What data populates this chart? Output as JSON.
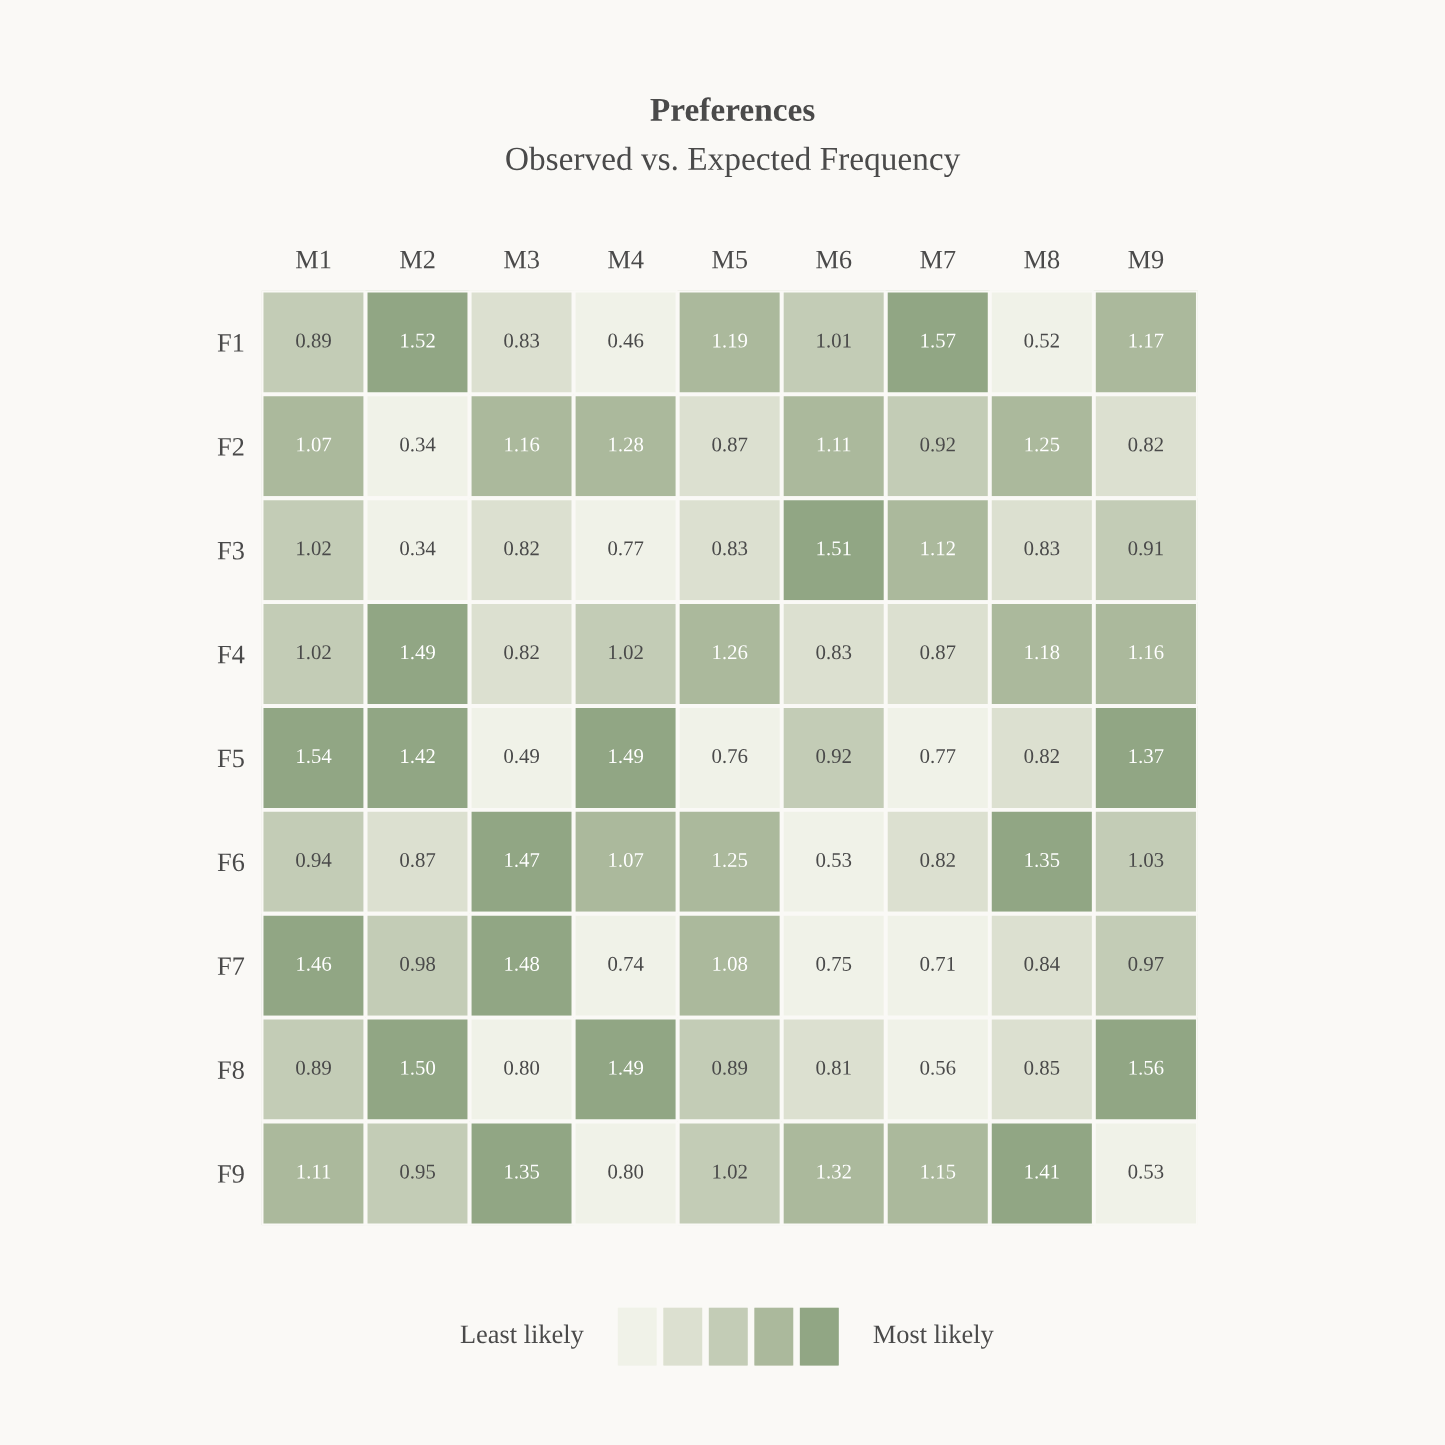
{
  "chart_data": {
    "type": "heatmap",
    "title": "Preferences",
    "subtitle": "Observed vs. Expected Frequency",
    "categories": [
      "M1",
      "M2",
      "M3",
      "M4",
      "M5",
      "M6",
      "M7",
      "M8",
      "M9"
    ],
    "y_categories": [
      "F1",
      "F2",
      "F3",
      "F4",
      "F5",
      "F6",
      "F7",
      "F8",
      "F9"
    ],
    "cells": [
      [
        0.89,
        1.52,
        0.83,
        0.46,
        1.19,
        1.01,
        1.57,
        0.52,
        1.17
      ],
      [
        1.07,
        0.34,
        1.16,
        1.28,
        0.87,
        1.11,
        0.92,
        1.25,
        0.82
      ],
      [
        1.02,
        0.34,
        0.82,
        0.77,
        0.83,
        1.51,
        1.12,
        0.83,
        0.91
      ],
      [
        1.02,
        1.49,
        0.82,
        1.02,
        1.26,
        0.83,
        0.87,
        1.18,
        1.16
      ],
      [
        1.54,
        1.42,
        0.49,
        1.49,
        0.76,
        0.92,
        0.77,
        0.82,
        1.37
      ],
      [
        0.94,
        0.87,
        1.47,
        1.07,
        1.25,
        0.53,
        0.82,
        1.35,
        1.03
      ],
      [
        1.46,
        0.98,
        1.48,
        0.74,
        1.08,
        0.75,
        0.71,
        0.84,
        0.97
      ],
      [
        0.89,
        1.5,
        0.8,
        1.49,
        0.89,
        0.81,
        0.56,
        0.85,
        1.56
      ],
      [
        1.11,
        0.95,
        1.35,
        0.8,
        1.02,
        1.32,
        1.15,
        1.41,
        0.53
      ]
    ],
    "cell_labels": [
      [
        "0.89",
        "1.52",
        "0.83",
        "0.46",
        "1.19",
        "1.01",
        "1.57",
        "0.52",
        "1.17"
      ],
      [
        "1.07",
        "0.34",
        "1.16",
        "1.28",
        "0.87",
        "1.11",
        "0.92",
        "1.25",
        "0.82"
      ],
      [
        "1.02",
        "0.34",
        "0.82",
        "0.77",
        "0.83",
        "1.51",
        "1.12",
        "0.83",
        "0.91"
      ],
      [
        "1.02",
        "1.49",
        "0.82",
        "1.02",
        "1.26",
        "0.83",
        "0.87",
        "1.18",
        "1.16"
      ],
      [
        "1.54",
        "1.42",
        "0.49",
        "1.49",
        "0.76",
        "0.92",
        "0.77",
        "0.82",
        "1.37"
      ],
      [
        "0.94",
        "0.87",
        "1.47",
        "1.07",
        "1.25",
        "0.53",
        "0.82",
        "1.35",
        "1.03"
      ],
      [
        "1.46",
        "0.98",
        "1.48",
        "0.74",
        "1.08",
        "0.75",
        "0.71",
        "0.84",
        "0.97"
      ],
      [
        "0.89",
        "1.50",
        "0.80",
        "1.49",
        "0.89",
        "0.81",
        "0.56",
        "0.85",
        "1.56"
      ],
      [
        "1.11",
        "0.95",
        "1.35",
        "0.80",
        "1.02",
        "1.32",
        "1.15",
        "1.41",
        "0.53"
      ]
    ],
    "colors": [
      "#f0f2e8",
      "#dce0d0",
      "#c3ccb6",
      "#abb99c",
      "#91a684"
    ],
    "data_labels": true,
    "annotations": [
      "Least likely",
      "Most likely"
    ]
  }
}
